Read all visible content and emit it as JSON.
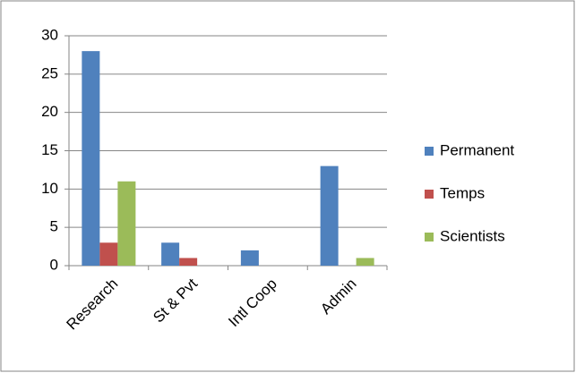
{
  "chart_data": {
    "type": "bar",
    "categories": [
      "Research",
      "St & Pvt",
      "Intl Coop",
      "Admin"
    ],
    "series": [
      {
        "name": "Permanent",
        "color": "#4f81bd",
        "values": [
          28,
          3,
          2,
          13
        ]
      },
      {
        "name": "Temps",
        "color": "#c0504d",
        "values": [
          3,
          1,
          0,
          0
        ]
      },
      {
        "name": "Scientists",
        "color": "#9bbb59",
        "values": [
          11,
          0,
          0,
          1
        ]
      }
    ],
    "ylim": [
      0,
      30
    ],
    "yticks": [
      0,
      5,
      10,
      15,
      20,
      25,
      30
    ],
    "grid": true,
    "legend": "right"
  }
}
